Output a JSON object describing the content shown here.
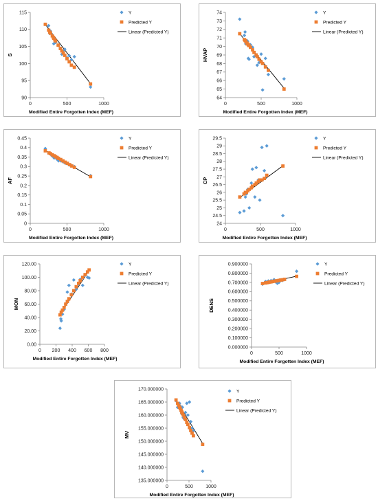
{
  "colors": {
    "y_points": "#5b9bd5",
    "predicted": "#ed7d31",
    "line": "#000000"
  },
  "legend_labels": {
    "y": "Y",
    "predicted": "Predicted Y",
    "linear": "Linear (Predicted Y)"
  },
  "chart_data": [
    {
      "type": "scatter",
      "ylabel": "S",
      "xlabel": "Modified  Entire Forgotten Index (MEF)",
      "xlim": [
        0,
        1000
      ],
      "xticks": [
        0,
        500,
        1000
      ],
      "xtick_labels": [
        "0",
        "500",
        "1000"
      ],
      "ylim": [
        90,
        115
      ],
      "yticks": [
        90,
        95,
        100,
        105,
        110,
        115
      ],
      "ytick_labels": [
        "90",
        "95",
        "100",
        "105",
        "110",
        "115"
      ],
      "y_points": [
        [
          205,
          111.5
        ],
        [
          250,
          111.1
        ],
        [
          265,
          108.8
        ],
        [
          275,
          109.5
        ],
        [
          300,
          108.3
        ],
        [
          315,
          107.7
        ],
        [
          320,
          105.8
        ],
        [
          335,
          107.2
        ],
        [
          345,
          106.2
        ],
        [
          380,
          105.3
        ],
        [
          410,
          104.5
        ],
        [
          430,
          102.7
        ],
        [
          450,
          103.8
        ],
        [
          470,
          104.2
        ],
        [
          500,
          101.7
        ],
        [
          530,
          102.3
        ],
        [
          560,
          101.1
        ],
        [
          600,
          102
        ],
        [
          820,
          93.1
        ]
      ],
      "predicted_points": [
        [
          205,
          111.5
        ],
        [
          250,
          109.8
        ],
        [
          265,
          109.2
        ],
        [
          275,
          108.9
        ],
        [
          300,
          108.1
        ],
        [
          315,
          107.6
        ],
        [
          320,
          107.4
        ],
        [
          335,
          106.9
        ],
        [
          345,
          106.6
        ],
        [
          380,
          105.4
        ],
        [
          410,
          104.4
        ],
        [
          430,
          103.7
        ],
        [
          450,
          103.1
        ],
        [
          470,
          102.4
        ],
        [
          500,
          101.4
        ],
        [
          530,
          100.5
        ],
        [
          560,
          99.5
        ],
        [
          600,
          98.9
        ],
        [
          820,
          94
        ]
      ],
      "trend": [
        [
          200,
          111.6
        ],
        [
          830,
          93.8
        ]
      ]
    },
    {
      "type": "scatter",
      "ylabel": "HVAP",
      "xlabel": "Modified  Entire Forgotten Index (MEF)",
      "xlim": [
        0,
        1000
      ],
      "xticks": [
        0,
        500,
        1000
      ],
      "xtick_labels": [
        "0",
        "500",
        "1000"
      ],
      "ylim": [
        64,
        74
      ],
      "yticks": [
        64,
        65,
        66,
        67,
        68,
        69,
        70,
        71,
        72,
        73,
        74
      ],
      "ytick_labels": [
        "64",
        "65",
        "66",
        "67",
        "68",
        "69",
        "70",
        "71",
        "72",
        "73",
        "74"
      ],
      "y_points": [
        [
          200,
          73.2
        ],
        [
          265,
          71.3
        ],
        [
          275,
          71.7
        ],
        [
          285,
          70.3
        ],
        [
          300,
          70.7
        ],
        [
          310,
          70.6
        ],
        [
          320,
          68.6
        ],
        [
          330,
          68.5
        ],
        [
          350,
          70.2
        ],
        [
          380,
          69.9
        ],
        [
          400,
          68.8
        ],
        [
          430,
          69
        ],
        [
          445,
          67.8
        ],
        [
          470,
          68.1
        ],
        [
          500,
          69.1
        ],
        [
          520,
          64.9
        ],
        [
          560,
          68.6
        ],
        [
          600,
          66.7
        ],
        [
          820,
          66.2
        ]
      ],
      "predicted_points": [
        [
          200,
          71.5
        ],
        [
          265,
          70.8
        ],
        [
          275,
          70.7
        ],
        [
          285,
          70.6
        ],
        [
          300,
          70.4
        ],
        [
          310,
          70.3
        ],
        [
          320,
          70.2
        ],
        [
          330,
          70.1
        ],
        [
          350,
          69.9
        ],
        [
          380,
          69.6
        ],
        [
          400,
          69.3
        ],
        [
          430,
          69
        ],
        [
          445,
          68.8
        ],
        [
          470,
          68.5
        ],
        [
          500,
          68.2
        ],
        [
          520,
          68
        ],
        [
          560,
          67.6
        ],
        [
          600,
          67.2
        ],
        [
          820,
          65
        ]
      ],
      "trend": [
        [
          200,
          71.5
        ],
        [
          830,
          65
        ]
      ]
    },
    {
      "type": "scatter",
      "ylabel": "AF",
      "xlabel": "Modified  Entire Forgotten Index (MEF)",
      "xlim": [
        0,
        1000
      ],
      "xticks": [
        0,
        500,
        1000
      ],
      "xtick_labels": [
        "0",
        "500",
        "1000"
      ],
      "ylim": [
        0,
        0.45
      ],
      "yticks": [
        0,
        0.05,
        0.1,
        0.15,
        0.2,
        0.25,
        0.3,
        0.35,
        0.4,
        0.45
      ],
      "ytick_labels": [
        "0",
        "0.05",
        "0.1",
        "0.15",
        "0.2",
        "0.25",
        "0.3",
        "0.35",
        "0.4",
        "0.45"
      ],
      "y_points": [
        [
          205,
          0.395
        ],
        [
          255,
          0.37
        ],
        [
          275,
          0.365
        ],
        [
          300,
          0.355
        ],
        [
          325,
          0.345
        ],
        [
          345,
          0.35
        ],
        [
          365,
          0.338
        ],
        [
          385,
          0.33
        ],
        [
          415,
          0.33
        ],
        [
          445,
          0.325
        ],
        [
          475,
          0.318
        ],
        [
          505,
          0.315
        ],
        [
          535,
          0.308
        ],
        [
          565,
          0.305
        ],
        [
          600,
          0.3
        ],
        [
          820,
          0.252
        ]
      ],
      "predicted_points": [
        [
          205,
          0.383
        ],
        [
          255,
          0.372
        ],
        [
          275,
          0.368
        ],
        [
          300,
          0.362
        ],
        [
          325,
          0.357
        ],
        [
          345,
          0.352
        ],
        [
          365,
          0.348
        ],
        [
          385,
          0.343
        ],
        [
          415,
          0.337
        ],
        [
          445,
          0.33
        ],
        [
          475,
          0.323
        ],
        [
          505,
          0.317
        ],
        [
          535,
          0.31
        ],
        [
          565,
          0.303
        ],
        [
          600,
          0.296
        ],
        [
          820,
          0.247
        ]
      ],
      "trend": [
        [
          200,
          0.385
        ],
        [
          830,
          0.244
        ]
      ]
    },
    {
      "type": "scatter",
      "ylabel": "CP",
      "xlabel": "Modified  Entire Forgotten Index (MEF)",
      "xlim": [
        0,
        1000
      ],
      "xticks": [
        0,
        500,
        1000
      ],
      "xtick_labels": [
        "0",
        "500",
        "1000"
      ],
      "ylim": [
        24,
        29.5
      ],
      "yticks": [
        24,
        24.5,
        25,
        25.5,
        26,
        26.5,
        27,
        27.5,
        28,
        28.5,
        29,
        29.5
      ],
      "ytick_labels": [
        "24",
        "24.5",
        "25",
        "25.5",
        "26",
        "26.5",
        "27",
        "27.5",
        "28",
        "28.5",
        "29",
        "29.5"
      ],
      "y_points": [
        [
          205,
          24.7
        ],
        [
          265,
          24.8
        ],
        [
          285,
          25.7
        ],
        [
          300,
          25.9
        ],
        [
          320,
          26.2
        ],
        [
          340,
          25
        ],
        [
          370,
          26.6
        ],
        [
          385,
          27.5
        ],
        [
          420,
          25.7
        ],
        [
          440,
          27.6
        ],
        [
          470,
          26.8
        ],
        [
          490,
          25.5
        ],
        [
          520,
          28.9
        ],
        [
          555,
          27.4
        ],
        [
          590,
          29
        ],
        [
          820,
          24.5
        ]
      ],
      "predicted_points": [
        [
          205,
          25.7
        ],
        [
          265,
          25.9
        ],
        [
          285,
          26
        ],
        [
          300,
          26
        ],
        [
          320,
          26.1
        ],
        [
          340,
          26.2
        ],
        [
          370,
          26.3
        ],
        [
          385,
          26.4
        ],
        [
          420,
          26.5
        ],
        [
          440,
          26.6
        ],
        [
          470,
          26.7
        ],
        [
          490,
          26.8
        ],
        [
          520,
          26.8
        ],
        [
          555,
          26.9
        ],
        [
          590,
          27.1
        ],
        [
          820,
          27.7
        ]
      ],
      "trend": [
        [
          200,
          25.65
        ],
        [
          830,
          27.75
        ]
      ]
    },
    {
      "type": "scatter",
      "ylabel": "MON",
      "xlabel": "Modified  Entire Forgotten Index (MEF)",
      "xlim": [
        0,
        800
      ],
      "xticks": [
        0,
        200,
        400,
        600,
        800
      ],
      "xtick_labels": [
        "0",
        "200",
        "400",
        "600",
        "800"
      ],
      "ylim": [
        0,
        120
      ],
      "yticks": [
        0,
        20,
        40,
        60,
        80,
        100,
        120
      ],
      "ytick_labels": [
        "0.00",
        "20.00",
        "40.00",
        "60.00",
        "80.00",
        "100.00",
        "120.00"
      ],
      "y_points": [
        [
          250,
          24
        ],
        [
          260,
          38
        ],
        [
          265,
          35
        ],
        [
          280,
          45
        ],
        [
          300,
          52
        ],
        [
          320,
          60
        ],
        [
          340,
          78
        ],
        [
          360,
          88
        ],
        [
          390,
          75
        ],
        [
          420,
          96
        ],
        [
          450,
          82
        ],
        [
          480,
          90
        ],
        [
          500,
          97
        ],
        [
          530,
          88
        ],
        [
          560,
          103
        ],
        [
          590,
          100
        ],
        [
          610,
          99
        ]
      ],
      "predicted_points": [
        [
          250,
          44
        ],
        [
          265,
          48
        ],
        [
          280,
          51
        ],
        [
          300,
          55
        ],
        [
          320,
          60
        ],
        [
          340,
          64
        ],
        [
          360,
          68
        ],
        [
          390,
          74
        ],
        [
          420,
          80
        ],
        [
          450,
          86
        ],
        [
          480,
          91
        ],
        [
          500,
          95
        ],
        [
          530,
          100
        ],
        [
          560,
          104
        ],
        [
          590,
          108
        ],
        [
          610,
          111
        ]
      ],
      "trend": [
        [
          240,
          43
        ],
        [
          620,
          112
        ]
      ]
    },
    {
      "type": "scatter",
      "ylabel": "DENS",
      "xlabel": "Modified  Entire Forgotten Index (MEF)",
      "xlim": [
        0,
        1000
      ],
      "xticks": [
        0,
        500,
        1000
      ],
      "xtick_labels": [
        "0",
        "500",
        "1000"
      ],
      "ylim": [
        0,
        0.9
      ],
      "yticks": [
        0,
        0.1,
        0.2,
        0.3,
        0.4,
        0.5,
        0.6,
        0.7,
        0.8,
        0.9
      ],
      "ytick_labels": [
        "0.000000",
        "0.100000",
        "0.200000",
        "0.300000",
        "0.400000",
        "0.500000",
        "0.600000",
        "0.700000",
        "0.800000",
        "0.900000"
      ],
      "y_points": [
        [
          200,
          0.68
        ],
        [
          255,
          0.71
        ],
        [
          280,
          0.7
        ],
        [
          305,
          0.715
        ],
        [
          330,
          0.705
        ],
        [
          355,
          0.72
        ],
        [
          385,
          0.71
        ],
        [
          410,
          0.73
        ],
        [
          440,
          0.705
        ],
        [
          470,
          0.69
        ],
        [
          500,
          0.7
        ],
        [
          530,
          0.725
        ],
        [
          560,
          0.72
        ],
        [
          600,
          0.73
        ],
        [
          820,
          0.82
        ]
      ],
      "predicted_points": [
        [
          200,
          0.688
        ],
        [
          255,
          0.694
        ],
        [
          280,
          0.697
        ],
        [
          305,
          0.7
        ],
        [
          330,
          0.703
        ],
        [
          355,
          0.706
        ],
        [
          385,
          0.709
        ],
        [
          410,
          0.712
        ],
        [
          440,
          0.715
        ],
        [
          470,
          0.718
        ],
        [
          500,
          0.722
        ],
        [
          530,
          0.725
        ],
        [
          560,
          0.728
        ],
        [
          600,
          0.733
        ],
        [
          820,
          0.765
        ]
      ],
      "trend": [
        [
          190,
          0.686
        ],
        [
          830,
          0.768
        ]
      ]
    },
    {
      "type": "scatter",
      "ylabel": "MV",
      "xlabel": "Modified  Entire Forgotten Index (MEF)",
      "xlim": [
        0,
        1000
      ],
      "xticks": [
        0,
        500,
        1000
      ],
      "xtick_labels": [
        "0",
        "500",
        "1000"
      ],
      "ylim": [
        135,
        170
      ],
      "yticks": [
        135,
        140,
        145,
        150,
        155,
        160,
        165,
        170
      ],
      "ytick_labels": [
        "135.000000",
        "140.000000",
        "145.000000",
        "150.000000",
        "155.000000",
        "160.000000",
        "165.000000",
        "170.000000"
      ],
      "y_points": [
        [
          205,
          165.5
        ],
        [
          240,
          163
        ],
        [
          265,
          164
        ],
        [
          285,
          164.5
        ],
        [
          300,
          163.5
        ],
        [
          320,
          161.5
        ],
        [
          335,
          160.5
        ],
        [
          350,
          163
        ],
        [
          370,
          159
        ],
        [
          395,
          158.5
        ],
        [
          420,
          161
        ],
        [
          450,
          164.5
        ],
        [
          475,
          160
        ],
        [
          510,
          165
        ],
        [
          540,
          157.5
        ],
        [
          570,
          155
        ],
        [
          600,
          154
        ],
        [
          810,
          138.5
        ]
      ],
      "predicted_points": [
        [
          205,
          165.8
        ],
        [
          240,
          164.5
        ],
        [
          265,
          163.7
        ],
        [
          285,
          163
        ],
        [
          300,
          162.5
        ],
        [
          320,
          161.8
        ],
        [
          335,
          161.2
        ],
        [
          350,
          160.7
        ],
        [
          370,
          160
        ],
        [
          395,
          159.1
        ],
        [
          420,
          158.3
        ],
        [
          450,
          157.2
        ],
        [
          475,
          156.4
        ],
        [
          510,
          155.2
        ],
        [
          540,
          154.1
        ],
        [
          570,
          153.1
        ],
        [
          600,
          152.1
        ],
        [
          810,
          148.8
        ]
      ],
      "trend": [
        [
          200,
          166
        ],
        [
          830,
          148.6
        ]
      ]
    }
  ]
}
